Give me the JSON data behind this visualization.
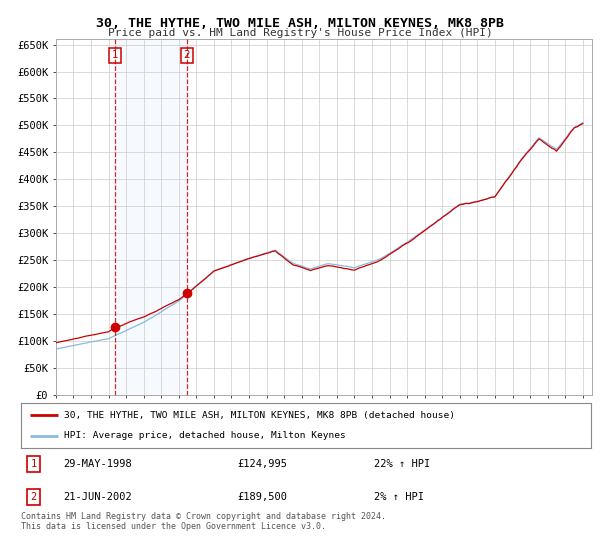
{
  "title": "30, THE HYTHE, TWO MILE ASH, MILTON KEYNES, MK8 8PB",
  "subtitle": "Price paid vs. HM Land Registry's House Price Index (HPI)",
  "background_color": "#ffffff",
  "grid_color": "#cccccc",
  "plot_bg_color": "#ffffff",
  "shade_color": "#ddeeff",
  "ylim": [
    0,
    660000
  ],
  "yticks": [
    0,
    50000,
    100000,
    150000,
    200000,
    250000,
    300000,
    350000,
    400000,
    450000,
    500000,
    550000,
    600000,
    650000
  ],
  "ytick_labels": [
    "£0",
    "£50K",
    "£100K",
    "£150K",
    "£200K",
    "£250K",
    "£300K",
    "£350K",
    "£400K",
    "£450K",
    "£500K",
    "£550K",
    "£600K",
    "£650K"
  ],
  "sale1_date": 1998.38,
  "sale1_price": 124995,
  "sale2_date": 2002.47,
  "sale2_price": 189500,
  "legend_line1": "30, THE HYTHE, TWO MILE ASH, MILTON KEYNES, MK8 8PB (detached house)",
  "legend_line2": "HPI: Average price, detached house, Milton Keynes",
  "table_row1_num": "1",
  "table_row1_date": "29-MAY-1998",
  "table_row1_price": "£124,995",
  "table_row1_hpi": "22% ↑ HPI",
  "table_row2_num": "2",
  "table_row2_date": "21-JUN-2002",
  "table_row2_price": "£189,500",
  "table_row2_hpi": "2% ↑ HPI",
  "footnote": "Contains HM Land Registry data © Crown copyright and database right 2024.\nThis data is licensed under the Open Government Licence v3.0.",
  "red_color": "#cc0000",
  "blue_color": "#88bbdd"
}
